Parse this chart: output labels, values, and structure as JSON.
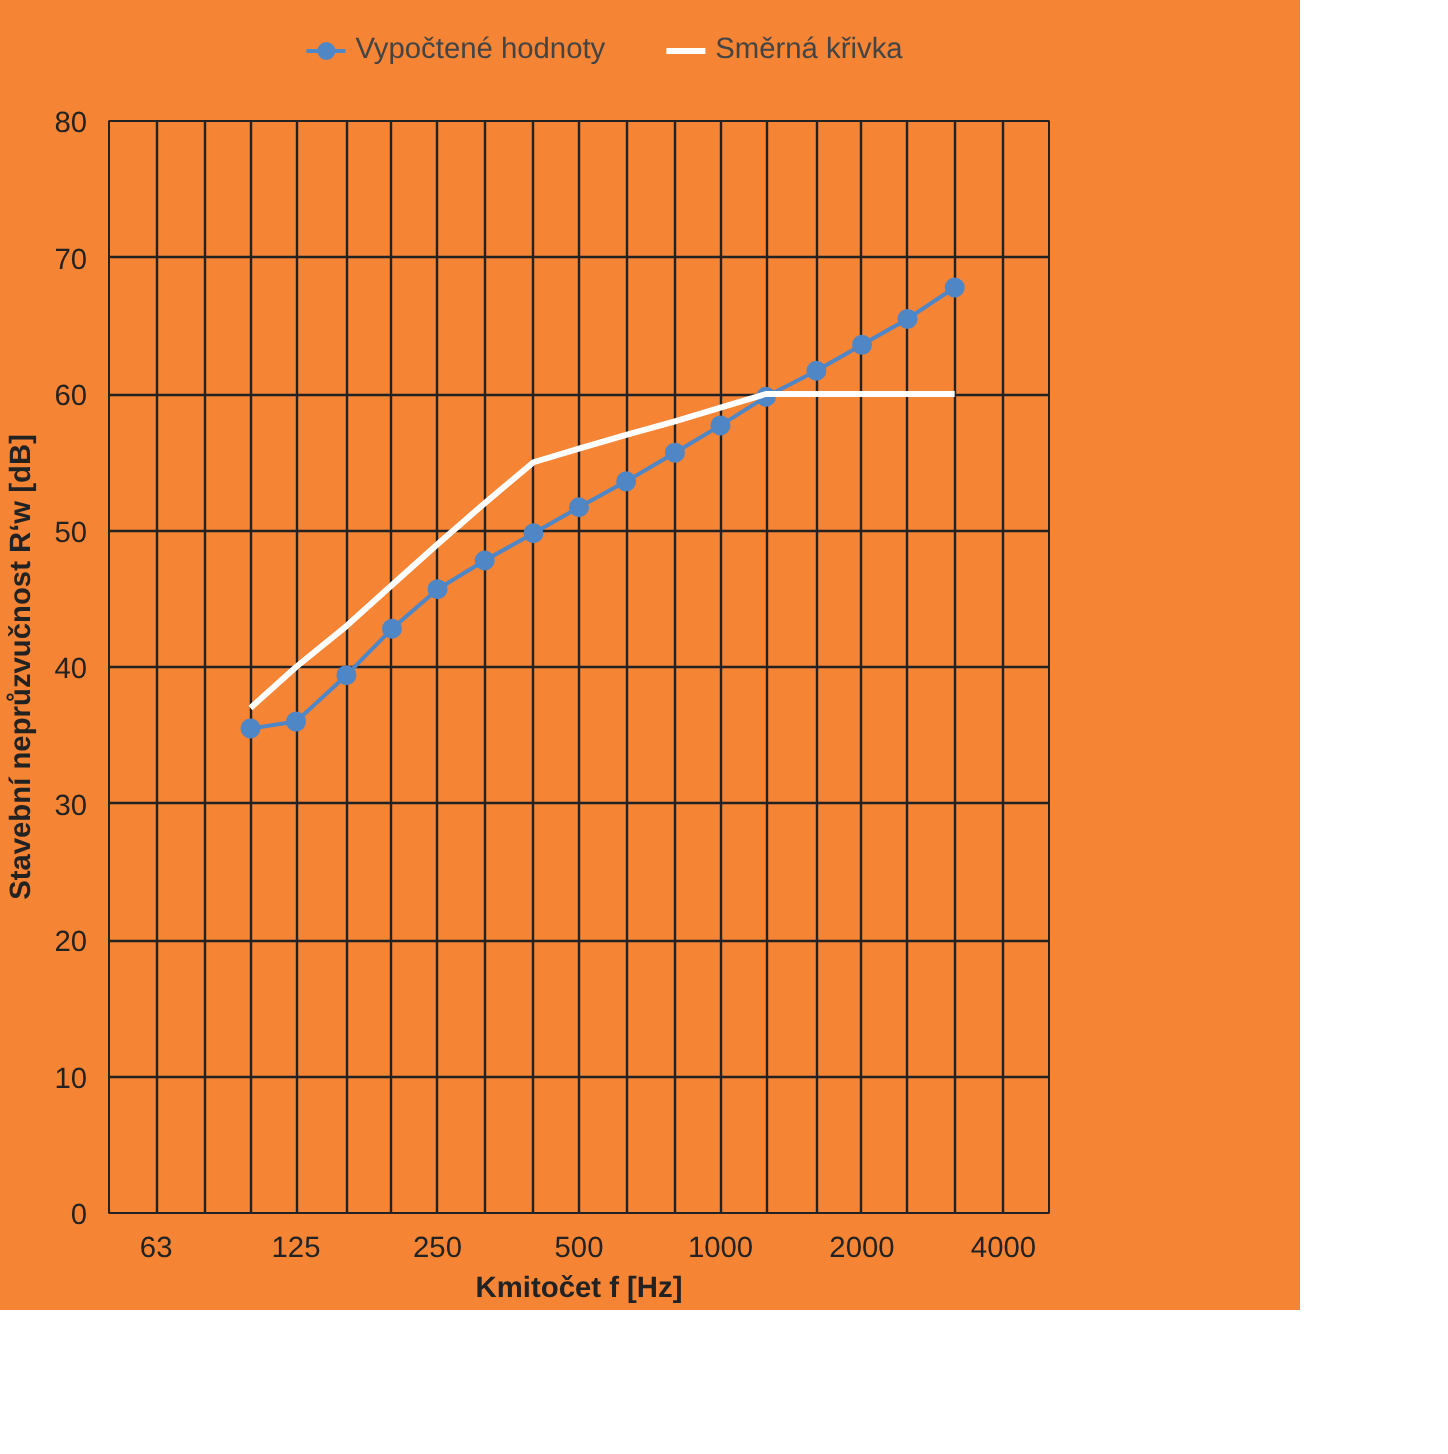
{
  "chart_data": {
    "type": "line",
    "xlabel": "Kmitočet f [Hz]",
    "ylabel": "Stavební neprůzvučnost R‘w [dB]",
    "log": "x",
    "xlim": [
      50,
      5000
    ],
    "ylim": [
      0,
      80
    ],
    "xticks": [
      {
        "value": 50,
        "label": null
      },
      63,
      {
        "value": 80,
        "label": null
      },
      {
        "value": 100,
        "label": null
      },
      125,
      {
        "value": 160,
        "label": null
      },
      {
        "value": 200,
        "label": null
      },
      250,
      {
        "value": 315,
        "label": null
      },
      {
        "value": 400,
        "label": null
      },
      500,
      {
        "value": 630,
        "label": null
      },
      {
        "value": 800,
        "label": null
      },
      1000,
      {
        "value": 1250,
        "label": null
      },
      {
        "value": 1600,
        "label": null
      },
      2000,
      {
        "value": 2500,
        "label": null
      },
      {
        "value": 3150,
        "label": null
      },
      4000,
      {
        "value": 5000,
        "label": null
      }
    ],
    "yticks": [
      0,
      10,
      20,
      30,
      40,
      50,
      60,
      70,
      80
    ],
    "grid": true,
    "legend": "top",
    "series": [
      {
        "name": "Vypočtené hodnoty",
        "color": "#4f86c6",
        "marker": "circle",
        "x": [
          100,
          125,
          160,
          200,
          250,
          315,
          400,
          500,
          630,
          800,
          1000,
          1250,
          1600,
          2000,
          2500,
          3150
        ],
        "values": [
          35.5,
          36,
          39.4,
          42.8,
          45.7,
          47.8,
          49.8,
          51.7,
          53.6,
          55.7,
          57.7,
          59.8,
          61.7,
          63.6,
          65.5,
          67.8
        ]
      },
      {
        "name": "Směrná křivka",
        "color": "#ffffff",
        "marker": "none",
        "x": [
          100,
          125,
          160,
          200,
          250,
          315,
          400,
          500,
          630,
          800,
          1000,
          1250,
          1600,
          2000,
          2500,
          3150
        ],
        "values": [
          37,
          40,
          43,
          46,
          49,
          52,
          55,
          56,
          57,
          58,
          59,
          60,
          60,
          60,
          60,
          60
        ]
      }
    ]
  }
}
